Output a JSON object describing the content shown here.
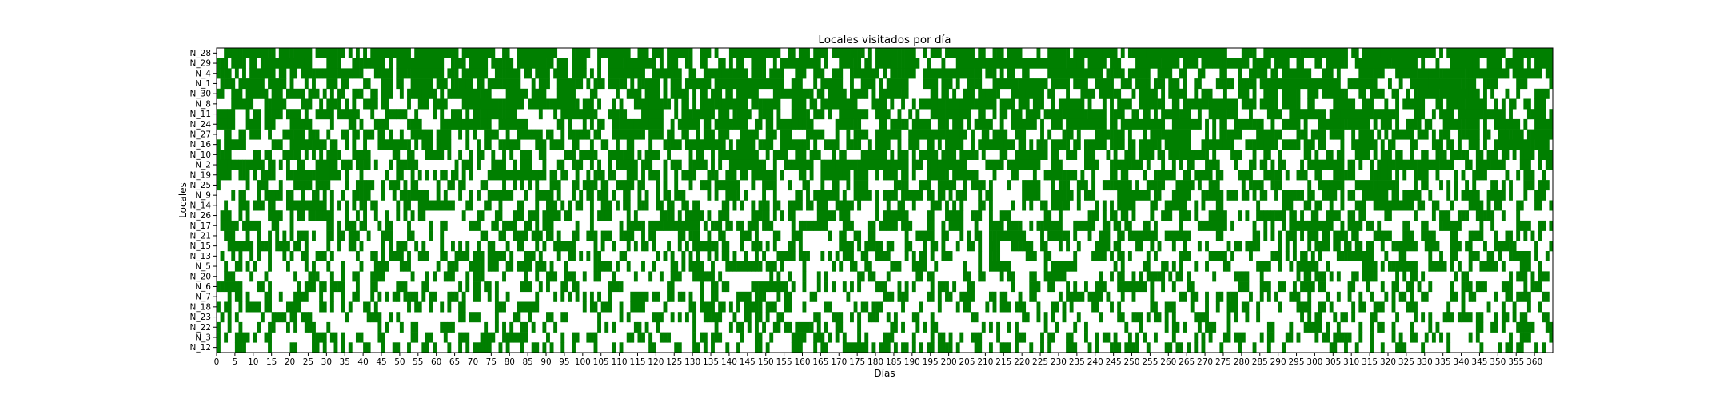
{
  "chart_data": {
    "type": "heatmap",
    "title": "Locales visitados por día",
    "xlabel": "Días",
    "ylabel": "Locales",
    "xlim": [
      0,
      365
    ],
    "x_ticks": [
      0,
      5,
      10,
      15,
      20,
      25,
      30,
      35,
      40,
      45,
      50,
      55,
      60,
      65,
      70,
      75,
      80,
      85,
      90,
      95,
      100,
      105,
      110,
      115,
      120,
      125,
      130,
      135,
      140,
      145,
      150,
      155,
      160,
      165,
      170,
      175,
      180,
      185,
      190,
      195,
      200,
      205,
      210,
      215,
      220,
      225,
      230,
      235,
      240,
      245,
      250,
      255,
      260,
      265,
      270,
      275,
      280,
      285,
      290,
      295,
      300,
      305,
      310,
      315,
      320,
      325,
      330,
      335,
      340,
      345,
      350,
      355,
      360
    ],
    "rows": [
      "N_28",
      "N_29",
      "N_4",
      "N_1",
      "N_30",
      "N_8",
      "N_11",
      "N_24",
      "N_27",
      "N_16",
      "N_10",
      "N_2",
      "N_19",
      "N_25",
      "N_9",
      "N_14",
      "N_26",
      "N_17",
      "N_21",
      "N_15",
      "N_13",
      "N_5",
      "N_20",
      "N_6",
      "N_7",
      "N_18",
      "N_23",
      "N_22",
      "N_3",
      "N_12"
    ],
    "visit_probability": [
      0.66,
      0.64,
      0.62,
      0.6,
      0.58,
      0.56,
      0.56,
      0.55,
      0.54,
      0.52,
      0.5,
      0.5,
      0.48,
      0.47,
      0.46,
      0.45,
      0.44,
      0.42,
      0.41,
      0.4,
      0.4,
      0.38,
      0.37,
      0.36,
      0.35,
      0.34,
      0.33,
      0.32,
      0.31,
      0.3
    ],
    "legend": "none",
    "grid": false,
    "colors": {
      "visited": "#007f00",
      "not_visited": "#ffffff"
    }
  }
}
